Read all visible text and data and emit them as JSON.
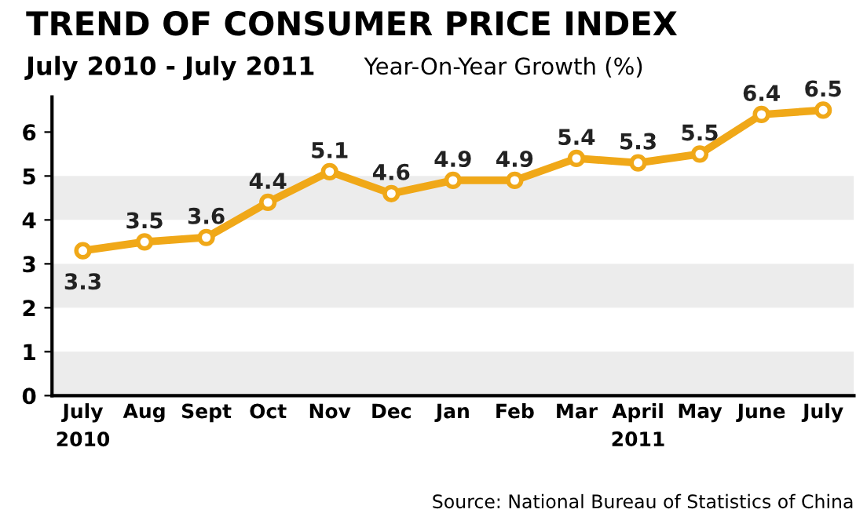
{
  "chart_data": {
    "type": "line",
    "title": "TREND OF CONSUMER PRICE INDEX",
    "subtitle": "July 2010 - July 2011",
    "ylabel": "Year-On-Year Growth (%)",
    "categories": [
      "July\n2010",
      "Aug",
      "Sept",
      "Oct",
      "Nov",
      "Dec",
      "Jan",
      "Feb",
      "Mar",
      "April\n2011",
      "May",
      "June",
      "July"
    ],
    "series": [
      {
        "color": "#f0a818",
        "values": [
          3.3,
          3.5,
          3.6,
          4.4,
          5.1,
          4.6,
          4.9,
          4.9,
          5.4,
          5.3,
          5.5,
          6.4,
          6.5
        ]
      }
    ],
    "ylim": [
      0,
      6.8
    ],
    "yticks": [
      0,
      1,
      2,
      3,
      4,
      5,
      6
    ],
    "grid": false,
    "marker": "circle",
    "line_style": "solid",
    "data_labels": true,
    "legend": false,
    "bands": [
      {
        "axis": "y",
        "from": 0,
        "to": 1,
        "color": "#ececec"
      },
      {
        "axis": "y",
        "from": 2,
        "to": 3,
        "color": "#ececec"
      },
      {
        "axis": "y",
        "from": 4,
        "to": 5,
        "color": "#ececec"
      }
    ],
    "annotations": [
      "Source: National Bureau of Statistics of China"
    ]
  }
}
